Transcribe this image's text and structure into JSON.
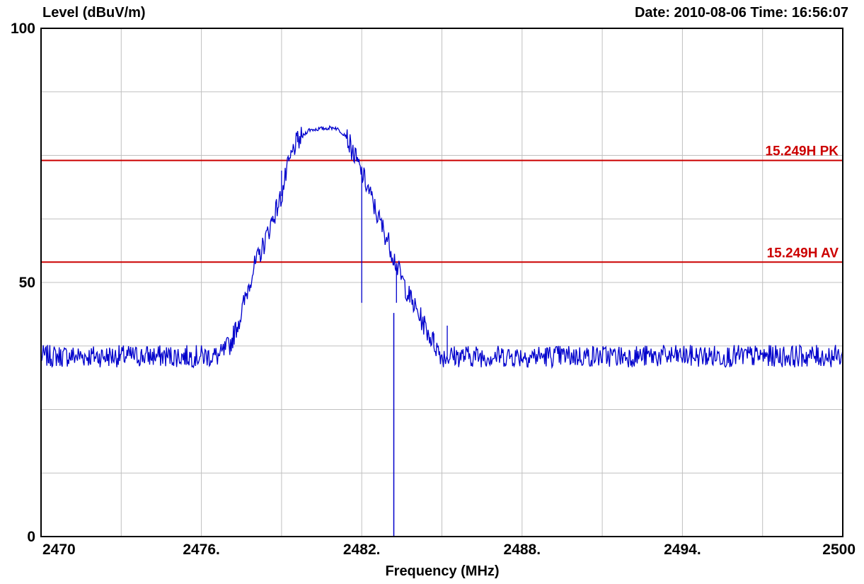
{
  "header": {
    "level_label": "Level (dBuV/m)",
    "date_time": "Date: 2010-08-06  Time: 16:56:07"
  },
  "chart_data": {
    "type": "line",
    "title": "",
    "xlabel": "Frequency (MHz)",
    "ylabel": "Level (dBuV/m)",
    "xlim": [
      2470,
      2500
    ],
    "ylim": [
      0,
      100
    ],
    "grid": true,
    "x_tick_labels": [
      {
        "value": 2470,
        "label": "2470"
      },
      {
        "value": 2476,
        "label": "2476."
      },
      {
        "value": 2482,
        "label": "2482."
      },
      {
        "value": 2488,
        "label": "2488."
      },
      {
        "value": 2494,
        "label": "2494."
      },
      {
        "value": 2500,
        "label": "2500"
      }
    ],
    "y_tick_labels": [
      {
        "value": 0,
        "label": "0"
      },
      {
        "value": 50,
        "label": "50"
      },
      {
        "value": 100,
        "label": "100"
      }
    ],
    "limit_lines": [
      {
        "name": "15.249H PK",
        "value": 74,
        "color": "#cc0000"
      },
      {
        "name": "15.249H AV",
        "value": 54,
        "color": "#cc0000"
      }
    ],
    "series": [
      {
        "color": "#0000cc",
        "noise_floor": 35.5,
        "points": [
          [
            2470.0,
            35.5
          ],
          [
            2476.7,
            35.5
          ],
          [
            2477.1,
            38
          ],
          [
            2477.5,
            44
          ],
          [
            2477.9,
            52
          ],
          [
            2478.3,
            57
          ],
          [
            2478.7,
            63
          ],
          [
            2479.0,
            67
          ],
          [
            2479.2,
            72
          ],
          [
            2479.5,
            77
          ],
          [
            2480.0,
            80
          ],
          [
            2481.0,
            80.5
          ],
          [
            2481.4,
            79
          ],
          [
            2481.8,
            74
          ],
          [
            2482.2,
            69
          ],
          [
            2482.6,
            63
          ],
          [
            2483.0,
            58
          ],
          [
            2483.4,
            52
          ],
          [
            2483.8,
            47
          ],
          [
            2484.2,
            43
          ],
          [
            2484.6,
            39
          ],
          [
            2485.0,
            35.5
          ],
          [
            2500.0,
            35.5
          ]
        ],
        "spikes": [
          [
            2479.0,
            72
          ],
          [
            2479.6,
            79
          ],
          [
            2482.0,
            46
          ],
          [
            2483.3,
            46
          ],
          [
            2484.7,
            40
          ],
          [
            2485.2,
            41.5
          ]
        ],
        "dropout": {
          "x": 2483.2,
          "from": 44,
          "to": 0
        }
      }
    ]
  }
}
